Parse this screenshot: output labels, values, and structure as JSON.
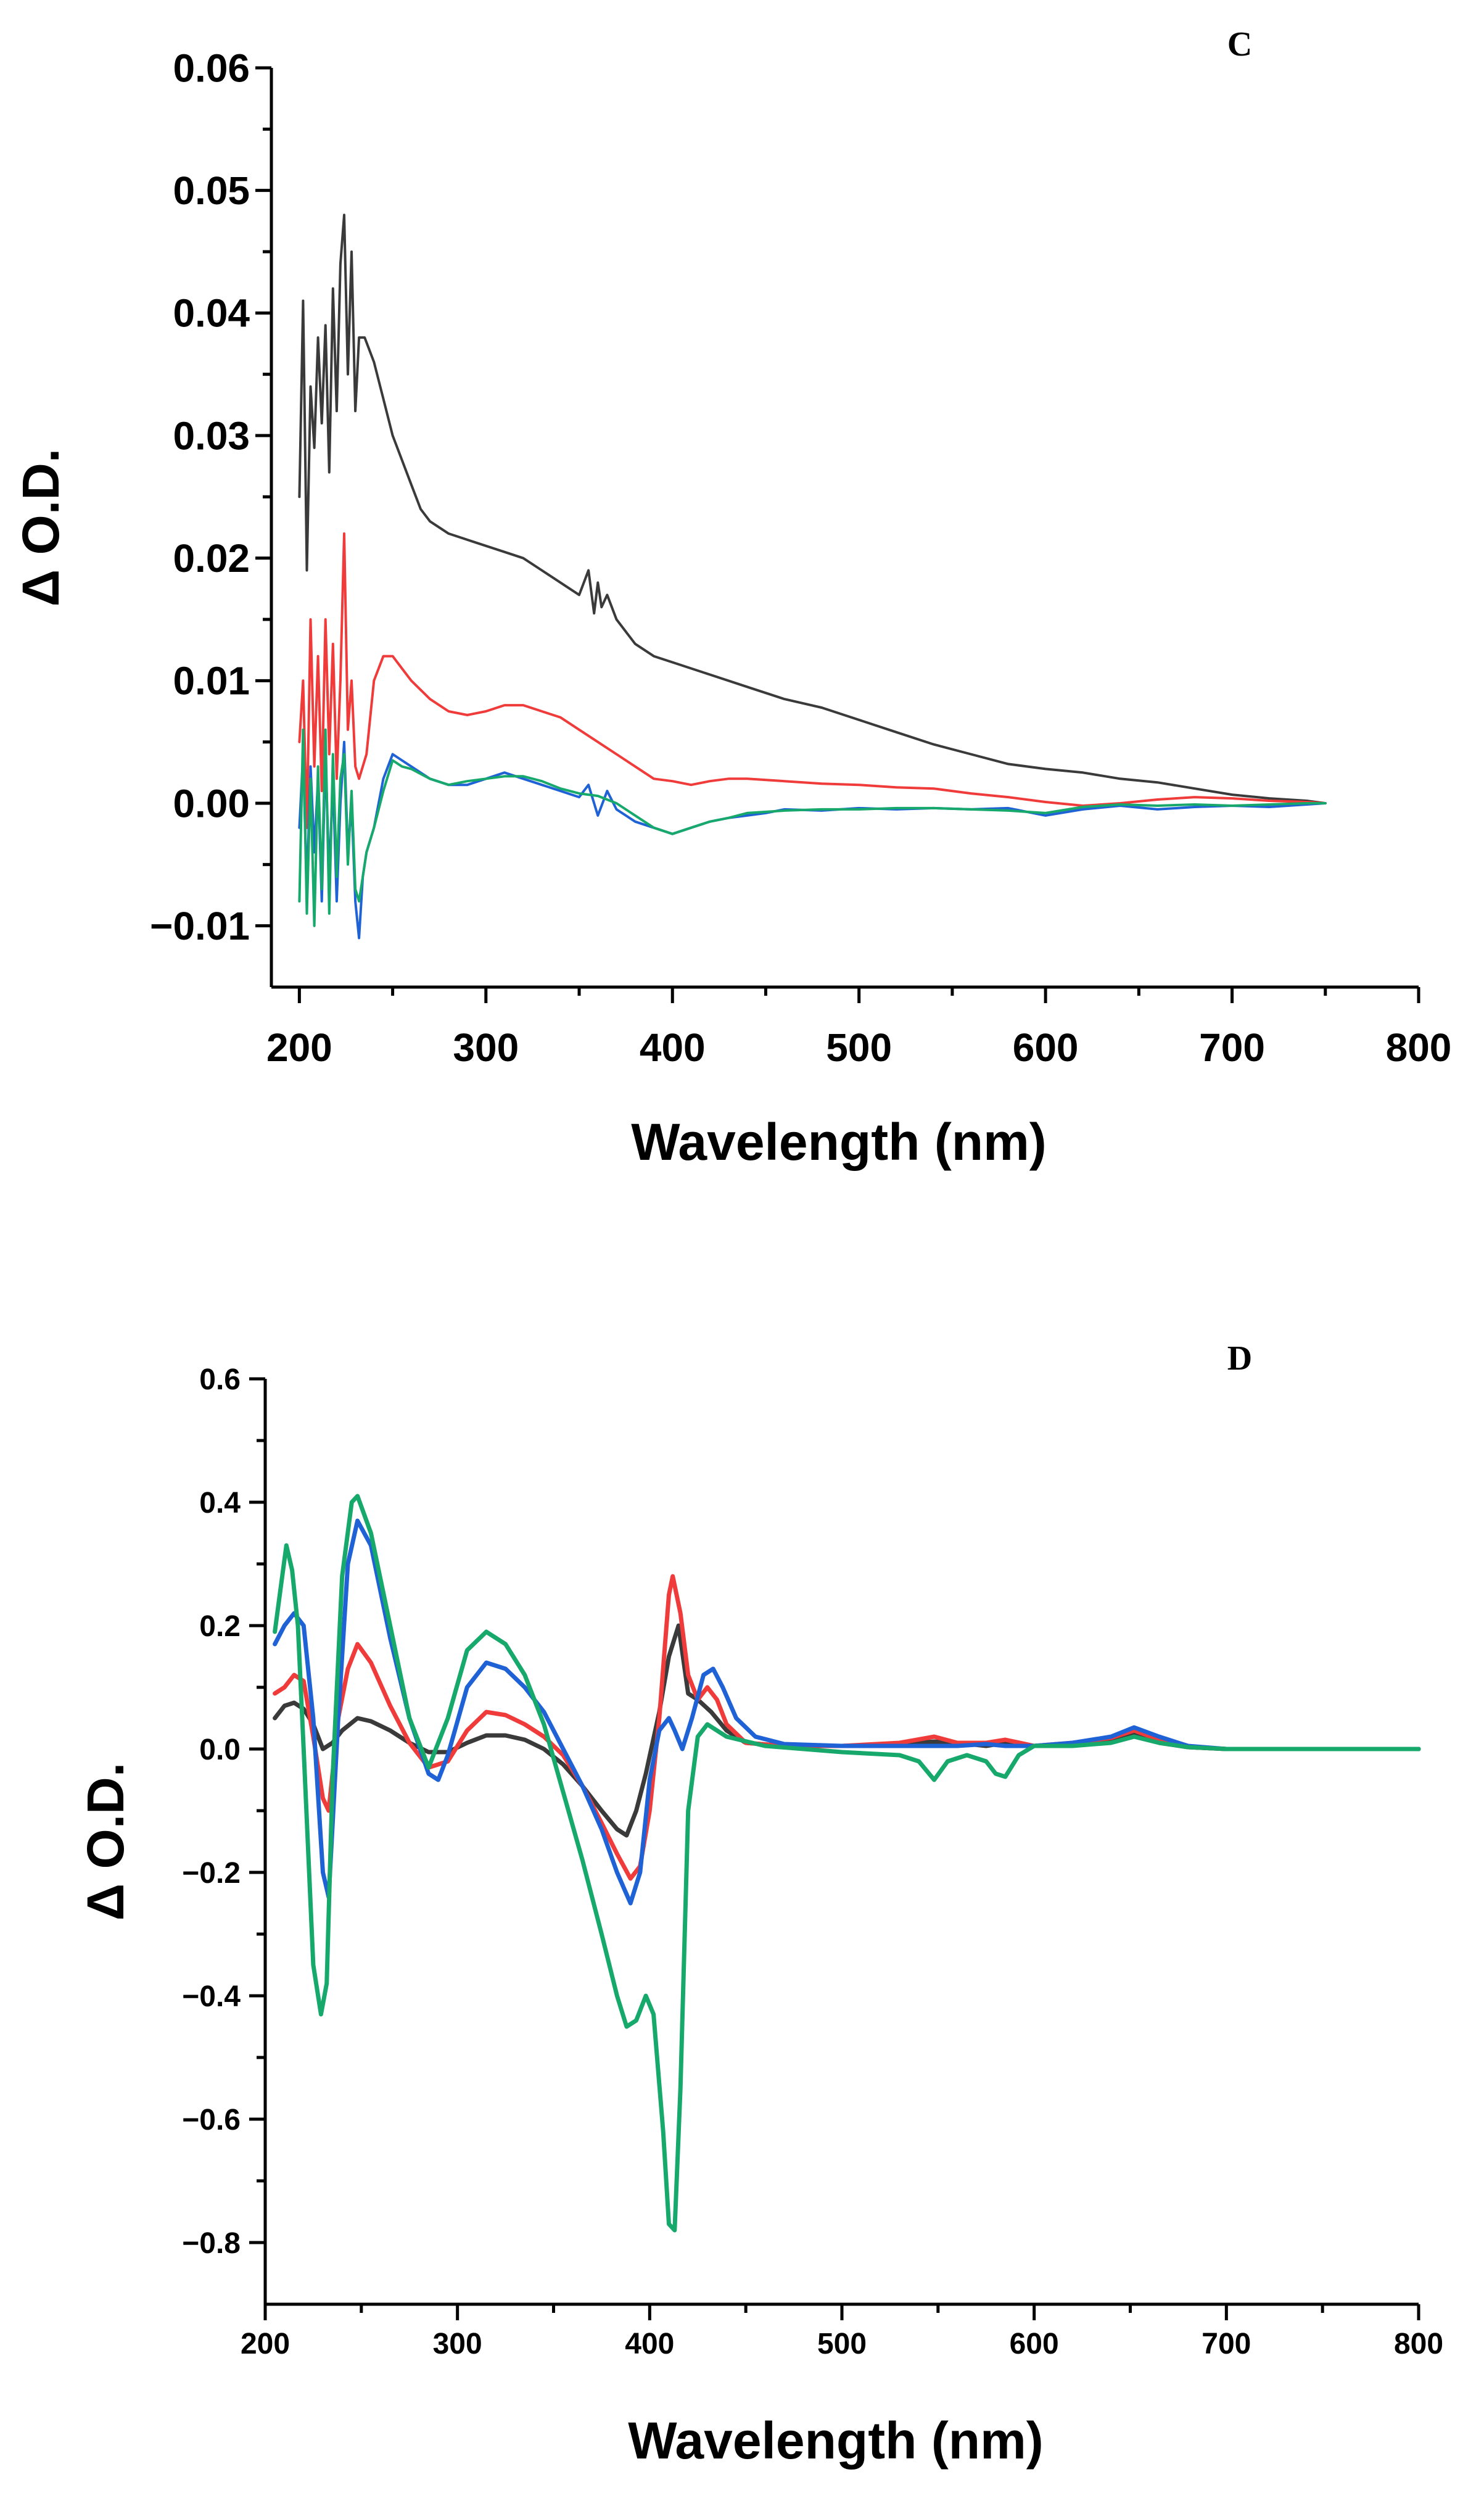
{
  "chart_data": [
    {
      "panel": "C",
      "type": "line",
      "title": "",
      "xlabel": "Wavelength (nm)",
      "ylabel": "Δ O.D.",
      "xlim": [
        185,
        800
      ],
      "ylim": [
        -0.015,
        0.06
      ],
      "xticks": [
        "200",
        "300",
        "400",
        "500",
        "600",
        "700",
        "800"
      ],
      "yticks": [
        "−0.01",
        "0.00",
        "0.01",
        "0.02",
        "0.03",
        "0.04",
        "0.05",
        "0.06"
      ],
      "xtick_values": [
        200,
        300,
        400,
        500,
        600,
        700,
        800
      ],
      "ytick_values": [
        -0.01,
        0,
        0.01,
        0.02,
        0.03,
        0.04,
        0.05,
        0.06
      ],
      "series": [
        {
          "name": "black",
          "color": "#3a3a3a",
          "x": [
            200,
            202,
            204,
            206,
            208,
            210,
            212,
            214,
            216,
            218,
            220,
            222,
            224,
            226,
            228,
            230,
            232,
            235,
            240,
            245,
            250,
            255,
            260,
            265,
            270,
            280,
            290,
            300,
            310,
            320,
            330,
            340,
            350,
            355,
            358,
            360,
            362,
            365,
            370,
            380,
            390,
            400,
            420,
            440,
            460,
            480,
            500,
            520,
            540,
            560,
            580,
            600,
            620,
            640,
            660,
            680,
            700,
            720,
            740,
            750
          ],
          "y": [
            0.025,
            0.041,
            0.019,
            0.034,
            0.029,
            0.038,
            0.031,
            0.039,
            0.027,
            0.042,
            0.032,
            0.044,
            0.048,
            0.035,
            0.045,
            0.032,
            0.038,
            0.038,
            0.036,
            0.033,
            0.03,
            0.028,
            0.026,
            0.024,
            0.023,
            0.022,
            0.0215,
            0.021,
            0.0205,
            0.02,
            0.019,
            0.018,
            0.017,
            0.019,
            0.0155,
            0.018,
            0.016,
            0.017,
            0.015,
            0.013,
            0.012,
            0.0115,
            0.0105,
            0.0095,
            0.0085,
            0.0078,
            0.0068,
            0.0058,
            0.0048,
            0.004,
            0.0032,
            0.0028,
            0.0025,
            0.002,
            0.0017,
            0.0012,
            0.0007,
            0.0004,
            0.0002,
            0.0
          ]
        },
        {
          "name": "red",
          "color": "#f03b3b",
          "x": [
            200,
            202,
            204,
            206,
            208,
            210,
            212,
            214,
            216,
            218,
            220,
            222,
            224,
            226,
            228,
            230,
            232,
            236,
            240,
            245,
            250,
            255,
            260,
            270,
            280,
            290,
            300,
            310,
            320,
            330,
            340,
            350,
            360,
            370,
            380,
            390,
            400,
            410,
            420,
            430,
            440,
            460,
            480,
            500,
            520,
            540,
            560,
            580,
            600,
            620,
            640,
            660,
            680,
            700,
            720,
            740,
            750
          ],
          "y": [
            0.005,
            0.01,
            -0.002,
            0.015,
            0.003,
            0.012,
            0.001,
            0.015,
            0.004,
            0.013,
            0.002,
            0.01,
            0.022,
            0.006,
            0.01,
            0.003,
            0.002,
            0.004,
            0.01,
            0.012,
            0.012,
            0.011,
            0.01,
            0.0085,
            0.0075,
            0.0072,
            0.0075,
            0.008,
            0.008,
            0.0075,
            0.007,
            0.006,
            0.005,
            0.004,
            0.003,
            0.002,
            0.0018,
            0.0015,
            0.0018,
            0.002,
            0.002,
            0.0018,
            0.0016,
            0.0015,
            0.0013,
            0.0012,
            0.0008,
            0.0005,
            0.0001,
            -0.0002,
            0.0,
            0.0003,
            0.0005,
            0.0004,
            0.0002,
            0.0001,
            0.0
          ]
        },
        {
          "name": "blue",
          "color": "#1f62d6",
          "x": [
            200,
            202,
            204,
            206,
            208,
            210,
            212,
            214,
            216,
            218,
            220,
            222,
            224,
            226,
            228,
            230,
            232,
            234,
            236,
            240,
            245,
            250,
            255,
            260,
            270,
            280,
            290,
            300,
            310,
            320,
            330,
            340,
            350,
            355,
            360,
            365,
            370,
            380,
            390,
            400,
            410,
            420,
            430,
            440,
            450,
            460,
            480,
            500,
            520,
            540,
            560,
            580,
            600,
            620,
            640,
            660,
            680,
            700,
            720,
            740,
            750
          ],
          "y": [
            -0.002,
            0.004,
            -0.007,
            0.003,
            -0.004,
            0.002,
            -0.008,
            0.004,
            -0.006,
            0.002,
            -0.008,
            0.0,
            0.005,
            -0.004,
            0.0,
            -0.008,
            -0.011,
            -0.006,
            -0.004,
            -0.002,
            0.002,
            0.004,
            0.0035,
            0.003,
            0.002,
            0.0015,
            0.0015,
            0.002,
            0.0025,
            0.002,
            0.0015,
            0.001,
            0.0005,
            0.0015,
            -0.001,
            0.001,
            -0.0005,
            -0.0015,
            -0.002,
            -0.0025,
            -0.002,
            -0.0015,
            -0.0012,
            -0.001,
            -0.0008,
            -0.0005,
            -0.0006,
            -0.0004,
            -0.0005,
            -0.0004,
            -0.0005,
            -0.0004,
            -0.001,
            -0.0005,
            -0.0002,
            -0.0005,
            -0.0003,
            -0.0002,
            -0.0003,
            -0.0001,
            0.0
          ]
        },
        {
          "name": "green",
          "color": "#17a86b",
          "x": [
            200,
            202,
            204,
            206,
            208,
            210,
            212,
            214,
            216,
            218,
            220,
            222,
            224,
            226,
            228,
            230,
            232,
            234,
            236,
            240,
            245,
            250,
            255,
            260,
            270,
            280,
            290,
            300,
            310,
            320,
            330,
            340,
            350,
            360,
            370,
            380,
            390,
            400,
            410,
            420,
            430,
            440,
            460,
            480,
            500,
            520,
            540,
            560,
            580,
            600,
            620,
            640,
            660,
            680,
            700,
            720,
            740,
            750
          ],
          "y": [
            -0.008,
            0.006,
            -0.009,
            0.002,
            -0.01,
            0.003,
            -0.007,
            0.006,
            -0.009,
            0.004,
            -0.006,
            0.002,
            0.004,
            -0.005,
            0.001,
            -0.007,
            -0.008,
            -0.006,
            -0.004,
            -0.002,
            0.001,
            0.0035,
            0.003,
            0.0028,
            0.002,
            0.0015,
            0.0018,
            0.002,
            0.0022,
            0.0022,
            0.0018,
            0.0012,
            0.0008,
            0.0006,
            0.0,
            -0.001,
            -0.002,
            -0.0025,
            -0.002,
            -0.0015,
            -0.0012,
            -0.0008,
            -0.0006,
            -0.0005,
            -0.0005,
            -0.0004,
            -0.0004,
            -0.0005,
            -0.0006,
            -0.0008,
            -0.0003,
            -0.0001,
            -0.0002,
            -0.0001,
            -0.0002,
            -0.0001,
            0.0,
            0.0
          ]
        }
      ]
    },
    {
      "panel": "D",
      "type": "line",
      "title": "",
      "xlabel": "Wavelength (nm)",
      "ylabel": "Δ O.D.",
      "xlim": [
        200,
        800
      ],
      "ylim": [
        -0.9,
        0.6
      ],
      "xticks": [
        "200",
        "300",
        "400",
        "500",
        "600",
        "700",
        "800"
      ],
      "yticks": [
        "−0.8",
        "−0.6",
        "−0.4",
        "−0.2",
        "0.0",
        "0.2",
        "0.4",
        "0.6"
      ],
      "xtick_values": [
        200,
        300,
        400,
        500,
        600,
        700,
        800
      ],
      "ytick_values": [
        -0.8,
        -0.6,
        -0.4,
        -0.2,
        0,
        0.2,
        0.4,
        0.6
      ],
      "series": [
        {
          "name": "black",
          "color": "#3a3a3a",
          "x": [
            205,
            210,
            215,
            220,
            225,
            230,
            235,
            240,
            248,
            255,
            265,
            275,
            285,
            295,
            305,
            315,
            325,
            335,
            345,
            355,
            365,
            375,
            383,
            388,
            393,
            398,
            405,
            410,
            415,
            420,
            425,
            432,
            440,
            450,
            470,
            500,
            530,
            548,
            560,
            575,
            585,
            600,
            620,
            640,
            652,
            665,
            680,
            700,
            750,
            800
          ],
          "y": [
            0.05,
            0.07,
            0.075,
            0.065,
            0.04,
            0.0,
            0.01,
            0.03,
            0.05,
            0.045,
            0.03,
            0.01,
            -0.005,
            -0.005,
            0.01,
            0.022,
            0.022,
            0.015,
            0.0,
            -0.025,
            -0.06,
            -0.1,
            -0.13,
            -0.14,
            -0.1,
            -0.04,
            0.06,
            0.15,
            0.2,
            0.09,
            0.08,
            0.06,
            0.03,
            0.01,
            0.005,
            0.005,
            0.008,
            0.012,
            0.01,
            0.005,
            0.01,
            0.005,
            0.008,
            0.015,
            0.025,
            0.01,
            0.003,
            0.0,
            0.0,
            0.0
          ]
        },
        {
          "name": "red",
          "color": "#f03b3b",
          "x": [
            205,
            210,
            215,
            220,
            225,
            230,
            233,
            238,
            243,
            248,
            255,
            265,
            275,
            285,
            295,
            305,
            315,
            325,
            335,
            345,
            355,
            365,
            375,
            383,
            390,
            395,
            400,
            405,
            410,
            412,
            416,
            420,
            425,
            430,
            435,
            440,
            450,
            470,
            500,
            530,
            548,
            560,
            575,
            585,
            600,
            620,
            640,
            652,
            665,
            680,
            700,
            750,
            800
          ],
          "y": [
            0.09,
            0.1,
            0.12,
            0.11,
            0.02,
            -0.08,
            -0.1,
            0.05,
            0.13,
            0.17,
            0.14,
            0.07,
            0.01,
            -0.03,
            -0.02,
            0.03,
            0.06,
            0.055,
            0.04,
            0.02,
            -0.01,
            -0.06,
            -0.12,
            -0.17,
            -0.21,
            -0.19,
            -0.1,
            0.05,
            0.25,
            0.28,
            0.22,
            0.12,
            0.08,
            0.1,
            0.08,
            0.04,
            0.01,
            0.005,
            0.005,
            0.01,
            0.02,
            0.01,
            0.01,
            0.015,
            0.005,
            0.01,
            0.018,
            0.03,
            0.015,
            0.003,
            0.0,
            0.0,
            0.0
          ]
        },
        {
          "name": "blue",
          "color": "#1f62d6",
          "x": [
            205,
            210,
            215,
            220,
            225,
            230,
            233,
            238,
            243,
            248,
            255,
            265,
            275,
            285,
            290,
            295,
            305,
            315,
            325,
            335,
            345,
            355,
            365,
            375,
            383,
            390,
            395,
            400,
            405,
            410,
            413,
            417,
            422,
            428,
            433,
            438,
            445,
            455,
            470,
            500,
            530,
            548,
            560,
            575,
            585,
            600,
            620,
            640,
            652,
            665,
            680,
            700,
            750,
            800
          ],
          "y": [
            0.17,
            0.2,
            0.22,
            0.2,
            0.05,
            -0.2,
            -0.24,
            0.05,
            0.3,
            0.37,
            0.33,
            0.18,
            0.05,
            -0.04,
            -0.05,
            -0.01,
            0.1,
            0.14,
            0.13,
            0.1,
            0.06,
            0.0,
            -0.06,
            -0.13,
            -0.2,
            -0.25,
            -0.2,
            -0.05,
            0.03,
            0.05,
            0.03,
            0.0,
            0.05,
            0.12,
            0.13,
            0.1,
            0.05,
            0.02,
            0.008,
            0.005,
            0.005,
            0.005,
            0.005,
            0.008,
            0.005,
            0.005,
            0.01,
            0.02,
            0.035,
            0.02,
            0.005,
            0.0,
            0.0,
            0.0
          ]
        },
        {
          "name": "green",
          "color": "#17a86b",
          "x": [
            205,
            208,
            211,
            214,
            217,
            220,
            225,
            229,
            232,
            235,
            240,
            245,
            248,
            255,
            265,
            275,
            285,
            295,
            305,
            315,
            325,
            335,
            345,
            355,
            365,
            375,
            383,
            388,
            393,
            398,
            402,
            407,
            410,
            413,
            416,
            420,
            425,
            430,
            440,
            460,
            500,
            530,
            540,
            548,
            555,
            565,
            575,
            580,
            585,
            592,
            600,
            620,
            640,
            652,
            665,
            680,
            700,
            750,
            800
          ],
          "y": [
            0.19,
            0.26,
            0.33,
            0.29,
            0.2,
            0.0,
            -0.35,
            -0.43,
            -0.38,
            -0.05,
            0.28,
            0.4,
            0.41,
            0.35,
            0.2,
            0.05,
            -0.03,
            0.05,
            0.16,
            0.19,
            0.17,
            0.12,
            0.04,
            -0.07,
            -0.18,
            -0.3,
            -0.4,
            -0.45,
            -0.44,
            -0.4,
            -0.43,
            -0.62,
            -0.77,
            -0.78,
            -0.55,
            -0.1,
            0.02,
            0.04,
            0.02,
            0.005,
            -0.005,
            -0.01,
            -0.02,
            -0.05,
            -0.02,
            -0.01,
            -0.02,
            -0.04,
            -0.045,
            -0.01,
            0.005,
            0.005,
            0.01,
            0.02,
            0.01,
            0.003,
            0.0,
            0.0,
            0.0
          ]
        }
      ]
    }
  ]
}
